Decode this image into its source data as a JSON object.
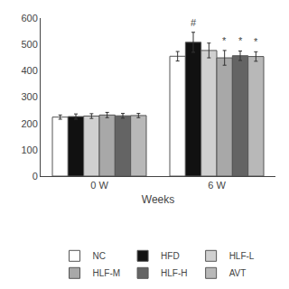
{
  "chart_data": {
    "type": "bar",
    "xlabel": "Weeks",
    "categories": [
      "0 W",
      "6 W"
    ],
    "series": [
      {
        "name": "NC",
        "color": "#ffffff",
        "values": [
          224,
          455
        ],
        "errors": [
          8,
          18
        ]
      },
      {
        "name": "HFD",
        "color": "#111111",
        "values": [
          226,
          508
        ],
        "errors": [
          10,
          38
        ],
        "annotations": [
          null,
          "#"
        ]
      },
      {
        "name": "HLF-L",
        "color": "#d0d0d0",
        "values": [
          228,
          477
        ],
        "errors": [
          9,
          28
        ]
      },
      {
        "name": "HLF-M",
        "color": "#a8a8a8",
        "values": [
          232,
          449
        ],
        "errors": [
          10,
          28
        ],
        "annotations": [
          null,
          "*"
        ]
      },
      {
        "name": "HLF-H",
        "color": "#646464",
        "values": [
          229,
          457
        ],
        "errors": [
          9,
          18
        ],
        "annotations": [
          null,
          "*"
        ]
      },
      {
        "name": "AVT",
        "color": "#b8b8b8",
        "values": [
          230,
          454
        ],
        "errors": [
          8,
          18
        ],
        "annotations": [
          null,
          "*"
        ]
      }
    ],
    "ylim": [
      0,
      600
    ],
    "yticks": [
      0,
      100,
      200,
      300,
      400,
      500,
      600
    ],
    "grid": false,
    "legend": "bottom"
  }
}
